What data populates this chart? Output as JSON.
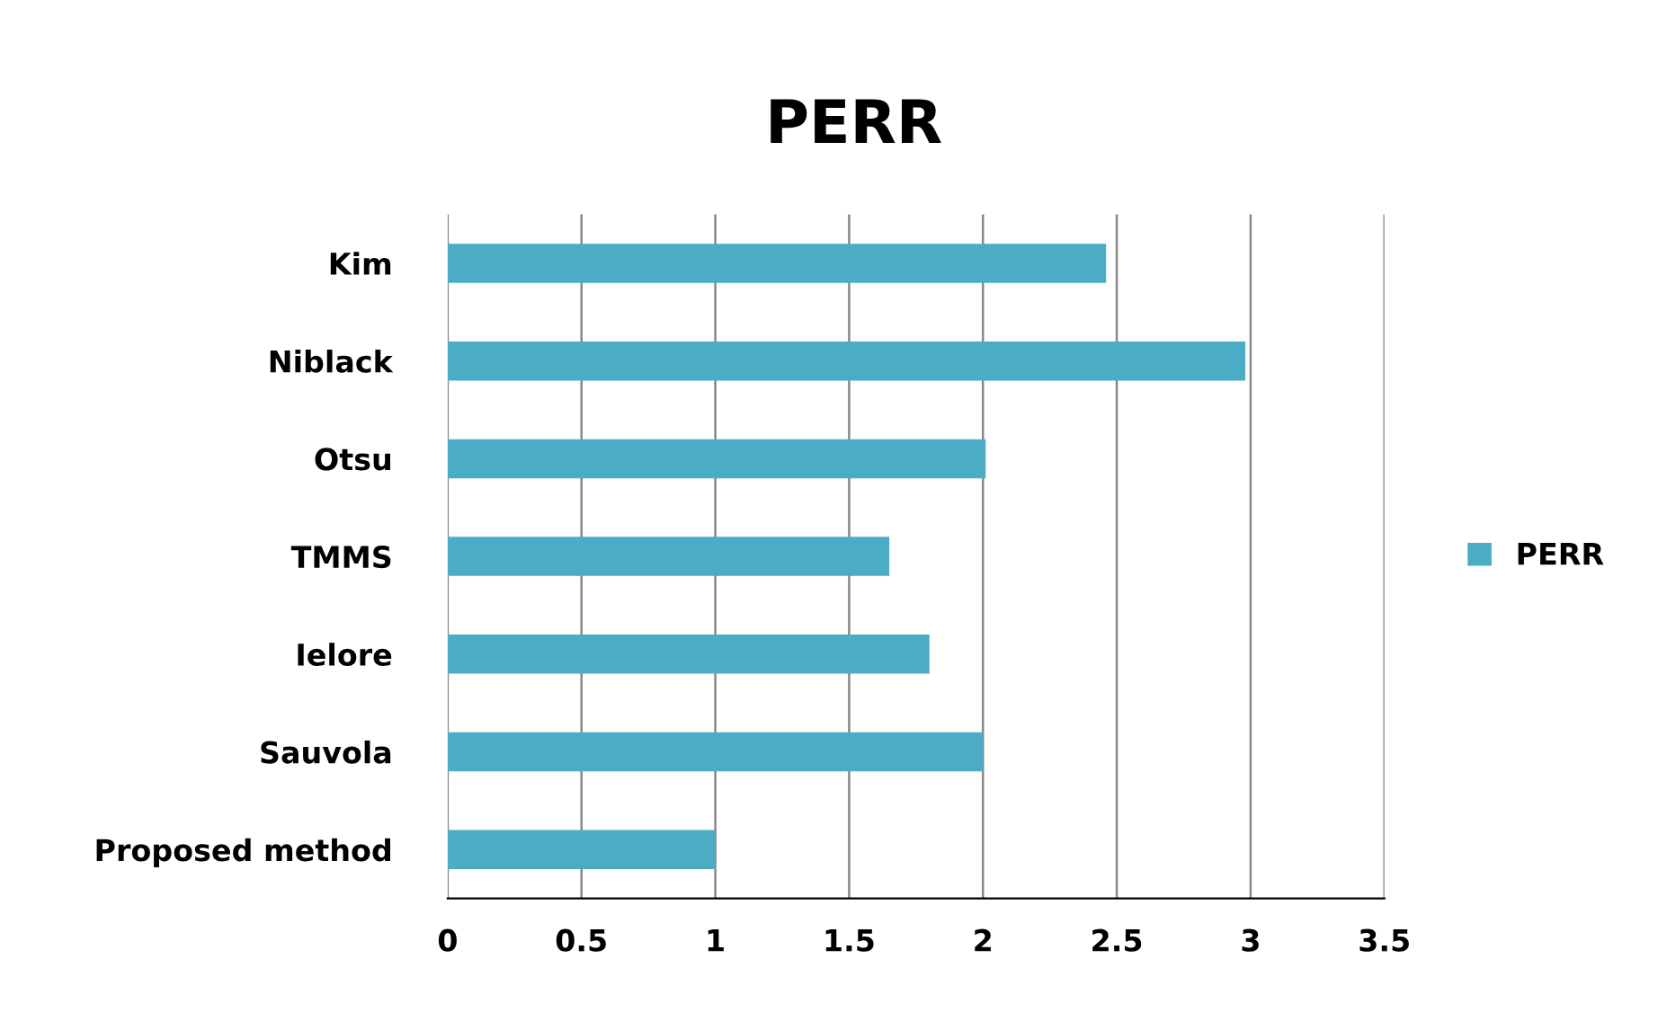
{
  "chart_data": {
    "type": "bar",
    "orientation": "horizontal",
    "title": "PERR",
    "categories": [
      "Kim",
      "Niblack",
      "Otsu",
      "TMMS",
      "Ielore",
      "Sauvola",
      "Proposed method"
    ],
    "series": [
      {
        "name": "PERR",
        "color": "#4bacc6",
        "values": [
          2.46,
          2.98,
          2.01,
          1.65,
          1.8,
          2.0,
          1.0
        ]
      }
    ],
    "xlim": [
      0,
      3.5
    ],
    "xticks": [
      0,
      0.5,
      1,
      1.5,
      2,
      2.5,
      3,
      3.5
    ],
    "grid": "x",
    "legend": "right"
  }
}
